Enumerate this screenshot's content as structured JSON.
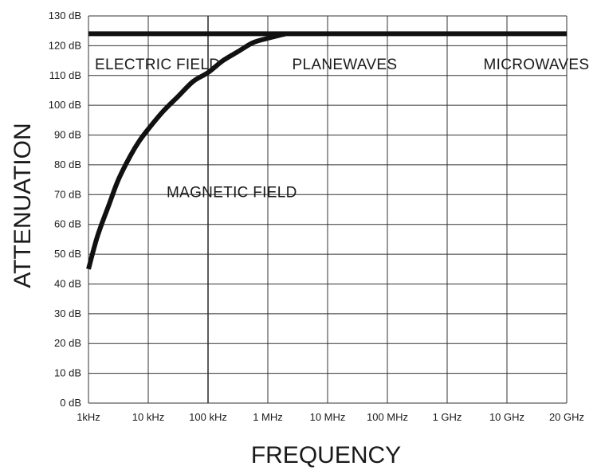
{
  "chart_data": {
    "type": "line",
    "title": "",
    "xlabel": "FREQUENCY",
    "ylabel": "ATTENUATION",
    "x_scale": "log",
    "x_ticks": [
      "1kHz",
      "10 kHz",
      "100 kHz",
      "1 MHz",
      "10 MHz",
      "100 MHz",
      "1 GHz",
      "10 GHz",
      "20 GHz"
    ],
    "y_ticks": [
      "0 dB",
      "10 dB",
      "20 dB",
      "30 dB",
      "40 dB",
      "50 dB",
      "60 dB",
      "70 dB",
      "80 dB",
      "90 dB",
      "100 dB",
      "110 dB",
      "120 dB",
      "130 dB"
    ],
    "ylim": [
      0,
      130
    ],
    "grid": true,
    "annotations": [
      {
        "text": "ELECTRIC FIELD",
        "x": 0,
        "y": 114
      },
      {
        "text": "PLANEWAVES",
        "x": 3.3,
        "y": 114
      },
      {
        "text": "MICROWAVES",
        "x": 6.5,
        "y": 114
      },
      {
        "text": "MAGNETIC FIELD",
        "x": 1.2,
        "y": 71
      }
    ],
    "series": [
      {
        "key": "electric",
        "points": [
          [
            0,
            124
          ],
          [
            8,
            124
          ]
        ]
      },
      {
        "key": "magnetic",
        "points": [
          [
            0,
            45
          ],
          [
            0.15,
            56
          ],
          [
            0.35,
            67
          ],
          [
            0.5,
            75
          ],
          [
            0.7,
            83
          ],
          [
            0.85,
            88
          ],
          [
            1.0,
            92
          ],
          [
            1.25,
            98
          ],
          [
            1.5,
            103
          ],
          [
            1.75,
            108
          ],
          [
            2.0,
            111
          ],
          [
            2.25,
            115
          ],
          [
            2.5,
            118
          ],
          [
            2.75,
            121
          ],
          [
            3.0,
            122.5
          ],
          [
            3.3,
            124
          ]
        ]
      }
    ]
  }
}
